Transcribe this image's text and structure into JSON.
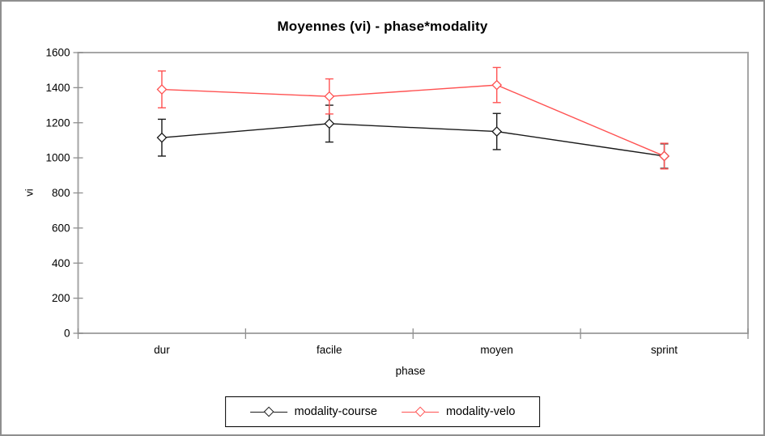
{
  "chart_data": {
    "type": "line",
    "title": "Moyennes (vi) - phase*modality",
    "xlabel": "phase",
    "ylabel": "vi",
    "categories": [
      "dur",
      "facile",
      "moyen",
      "sprint"
    ],
    "ylim": [
      0,
      1600
    ],
    "yticks": [
      0,
      200,
      400,
      600,
      800,
      1000,
      1200,
      1400,
      1600
    ],
    "grid": false,
    "legend_position": "bottom-outside",
    "error_bars": true,
    "series": [
      {
        "name": "modality-course",
        "color": "#1a1a1a",
        "marker": "open-diamond",
        "values": [
          1115,
          1195,
          1150,
          1010
        ],
        "errors": [
          105,
          105,
          103,
          70
        ]
      },
      {
        "name": "modality-velo",
        "color": "#ff5252",
        "marker": "open-diamond",
        "values": [
          1390,
          1350,
          1415,
          1010
        ],
        "errors": [
          105,
          100,
          100,
          73
        ]
      }
    ],
    "frame_color": "#a6a6a6",
    "tick_color": "#8f8f8f",
    "text_color": "#000000"
  }
}
